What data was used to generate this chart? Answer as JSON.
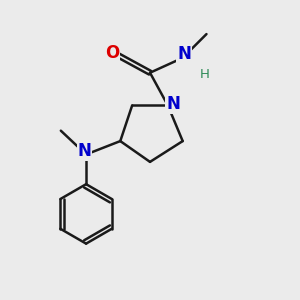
{
  "bg_color": "#ebebeb",
  "bond_color": "#1a1a1a",
  "N_color": "#0000cc",
  "O_color": "#dd0000",
  "H_color": "#2e8b57",
  "lw": 1.8,
  "fig_size": [
    3.0,
    3.0
  ],
  "dpi": 100,
  "xlim": [
    0,
    10
  ],
  "ylim": [
    0,
    10
  ]
}
